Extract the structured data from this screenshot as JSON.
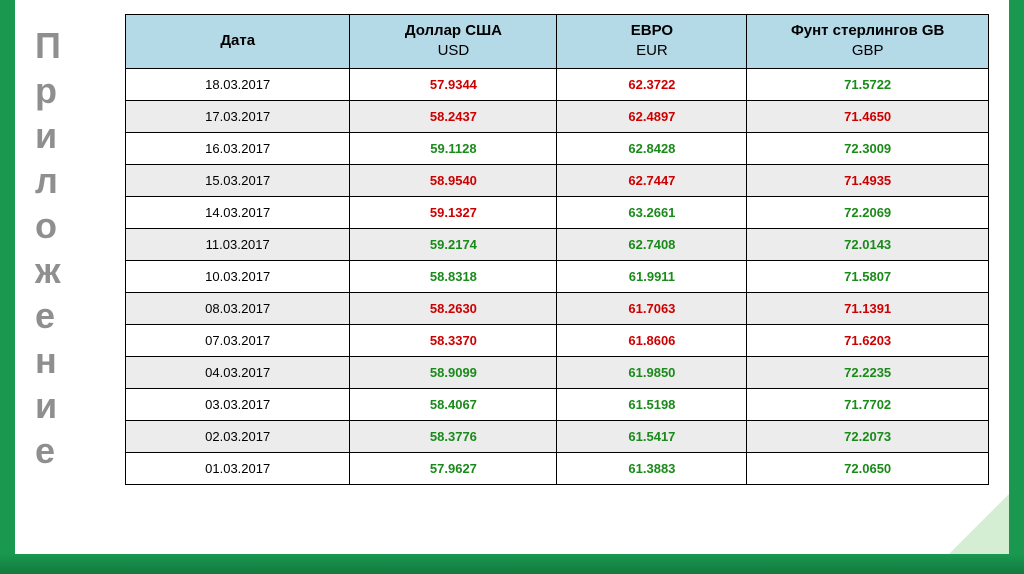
{
  "colors": {
    "green_bar": "#1a9850",
    "header_bg": "#b4d9e7",
    "row_even_bg": "#ececec",
    "row_odd_bg": "#ffffff",
    "value_up": "#cc0000",
    "value_down": "#1a8a1a",
    "sidebar_text": "#8f8f8f"
  },
  "sidebar": {
    "title": "Приложение",
    "letters": [
      "П",
      "р",
      "и",
      "л",
      "о",
      "ж",
      "е",
      "н",
      "и",
      "е"
    ]
  },
  "table": {
    "type": "table",
    "columns": [
      {
        "key": "date",
        "title": "Дата",
        "sub": ""
      },
      {
        "key": "usd",
        "title": "Доллар США",
        "sub": "USD"
      },
      {
        "key": "eur",
        "title": "ЕВРО",
        "sub": "EUR"
      },
      {
        "key": "gbp",
        "title": "Фунт стерлингов GB",
        "sub": "GBP"
      }
    ],
    "rows": [
      {
        "date": "18.03.2017",
        "usd": {
          "v": "57.9344",
          "d": "up"
        },
        "eur": {
          "v": "62.3722",
          "d": "up"
        },
        "gbp": {
          "v": "71.5722",
          "d": "down"
        }
      },
      {
        "date": "17.03.2017",
        "usd": {
          "v": "58.2437",
          "d": "up"
        },
        "eur": {
          "v": "62.4897",
          "d": "up"
        },
        "gbp": {
          "v": "71.4650",
          "d": "up"
        }
      },
      {
        "date": "16.03.2017",
        "usd": {
          "v": "59.1128",
          "d": "down"
        },
        "eur": {
          "v": "62.8428",
          "d": "down"
        },
        "gbp": {
          "v": "72.3009",
          "d": "down"
        }
      },
      {
        "date": "15.03.2017",
        "usd": {
          "v": "58.9540",
          "d": "up"
        },
        "eur": {
          "v": "62.7447",
          "d": "up"
        },
        "gbp": {
          "v": "71.4935",
          "d": "up"
        }
      },
      {
        "date": "14.03.2017",
        "usd": {
          "v": "59.1327",
          "d": "up"
        },
        "eur": {
          "v": "63.2661",
          "d": "down"
        },
        "gbp": {
          "v": "72.2069",
          "d": "down"
        }
      },
      {
        "date": "11.03.2017",
        "usd": {
          "v": "59.2174",
          "d": "down"
        },
        "eur": {
          "v": "62.7408",
          "d": "down"
        },
        "gbp": {
          "v": "72.0143",
          "d": "down"
        }
      },
      {
        "date": "10.03.2017",
        "usd": {
          "v": "58.8318",
          "d": "down"
        },
        "eur": {
          "v": "61.9911",
          "d": "down"
        },
        "gbp": {
          "v": "71.5807",
          "d": "down"
        }
      },
      {
        "date": "08.03.2017",
        "usd": {
          "v": "58.2630",
          "d": "up"
        },
        "eur": {
          "v": "61.7063",
          "d": "up"
        },
        "gbp": {
          "v": "71.1391",
          "d": "up"
        }
      },
      {
        "date": "07.03.2017",
        "usd": {
          "v": "58.3370",
          "d": "up"
        },
        "eur": {
          "v": "61.8606",
          "d": "up"
        },
        "gbp": {
          "v": "71.6203",
          "d": "up"
        }
      },
      {
        "date": "04.03.2017",
        "usd": {
          "v": "58.9099",
          "d": "down"
        },
        "eur": {
          "v": "61.9850",
          "d": "down"
        },
        "gbp": {
          "v": "72.2235",
          "d": "down"
        }
      },
      {
        "date": "03.03.2017",
        "usd": {
          "v": "58.4067",
          "d": "down"
        },
        "eur": {
          "v": "61.5198",
          "d": "down"
        },
        "gbp": {
          "v": "71.7702",
          "d": "down"
        }
      },
      {
        "date": "02.03.2017",
        "usd": {
          "v": "58.3776",
          "d": "down"
        },
        "eur": {
          "v": "61.5417",
          "d": "down"
        },
        "gbp": {
          "v": "72.2073",
          "d": "down"
        }
      },
      {
        "date": "01.03.2017",
        "usd": {
          "v": "57.9627",
          "d": "down"
        },
        "eur": {
          "v": "61.3883",
          "d": "down"
        },
        "gbp": {
          "v": "72.0650",
          "d": "down"
        }
      }
    ]
  }
}
